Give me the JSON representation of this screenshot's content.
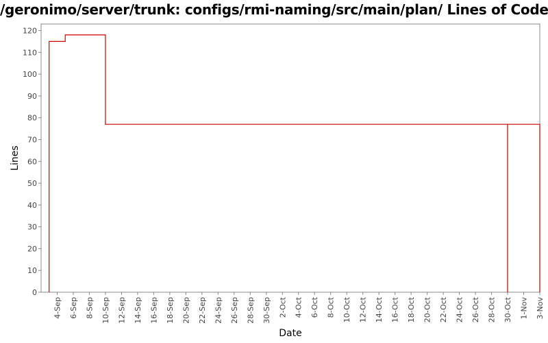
{
  "chart_data": {
    "type": "line",
    "title": "/geronimo/server/trunk: configs/rmi-naming/src/main/plan/ Lines of Code",
    "xlabel": "Date",
    "ylabel": "Lines",
    "ylim": [
      0,
      123
    ],
    "yticks": [
      0,
      10,
      20,
      30,
      40,
      50,
      60,
      70,
      80,
      90,
      100,
      110,
      120
    ],
    "x_range": [
      "2-Sep",
      "3-Nov"
    ],
    "xticks": [
      "4-Sep",
      "6-Sep",
      "8-Sep",
      "10-Sep",
      "12-Sep",
      "14-Sep",
      "16-Sep",
      "18-Sep",
      "20-Sep",
      "22-Sep",
      "24-Sep",
      "26-Sep",
      "28-Sep",
      "30-Sep",
      "2-Oct",
      "4-Oct",
      "6-Oct",
      "8-Oct",
      "10-Oct",
      "12-Oct",
      "14-Oct",
      "16-Oct",
      "18-Oct",
      "20-Oct",
      "22-Oct",
      "24-Oct",
      "26-Oct",
      "28-Oct",
      "30-Oct",
      "1-Nov",
      "3-Nov"
    ],
    "grid": false,
    "step": true,
    "series": [
      {
        "color": "#cc0000",
        "points": [
          {
            "x": "3-Sep",
            "y": 0
          },
          {
            "x": "3-Sep",
            "y": 115
          },
          {
            "x": "5-Sep",
            "y": 115
          },
          {
            "x": "5-Sep",
            "y": 118
          },
          {
            "x": "10-Sep",
            "y": 118
          },
          {
            "x": "10-Sep",
            "y": 77
          },
          {
            "x": "30-Oct",
            "y": 77
          },
          {
            "x": "30-Oct",
            "y": 0
          },
          {
            "x": "30-Oct",
            "y": 77
          },
          {
            "x": "3-Nov",
            "y": 77
          },
          {
            "x": "3-Nov",
            "y": 0
          }
        ]
      }
    ]
  }
}
